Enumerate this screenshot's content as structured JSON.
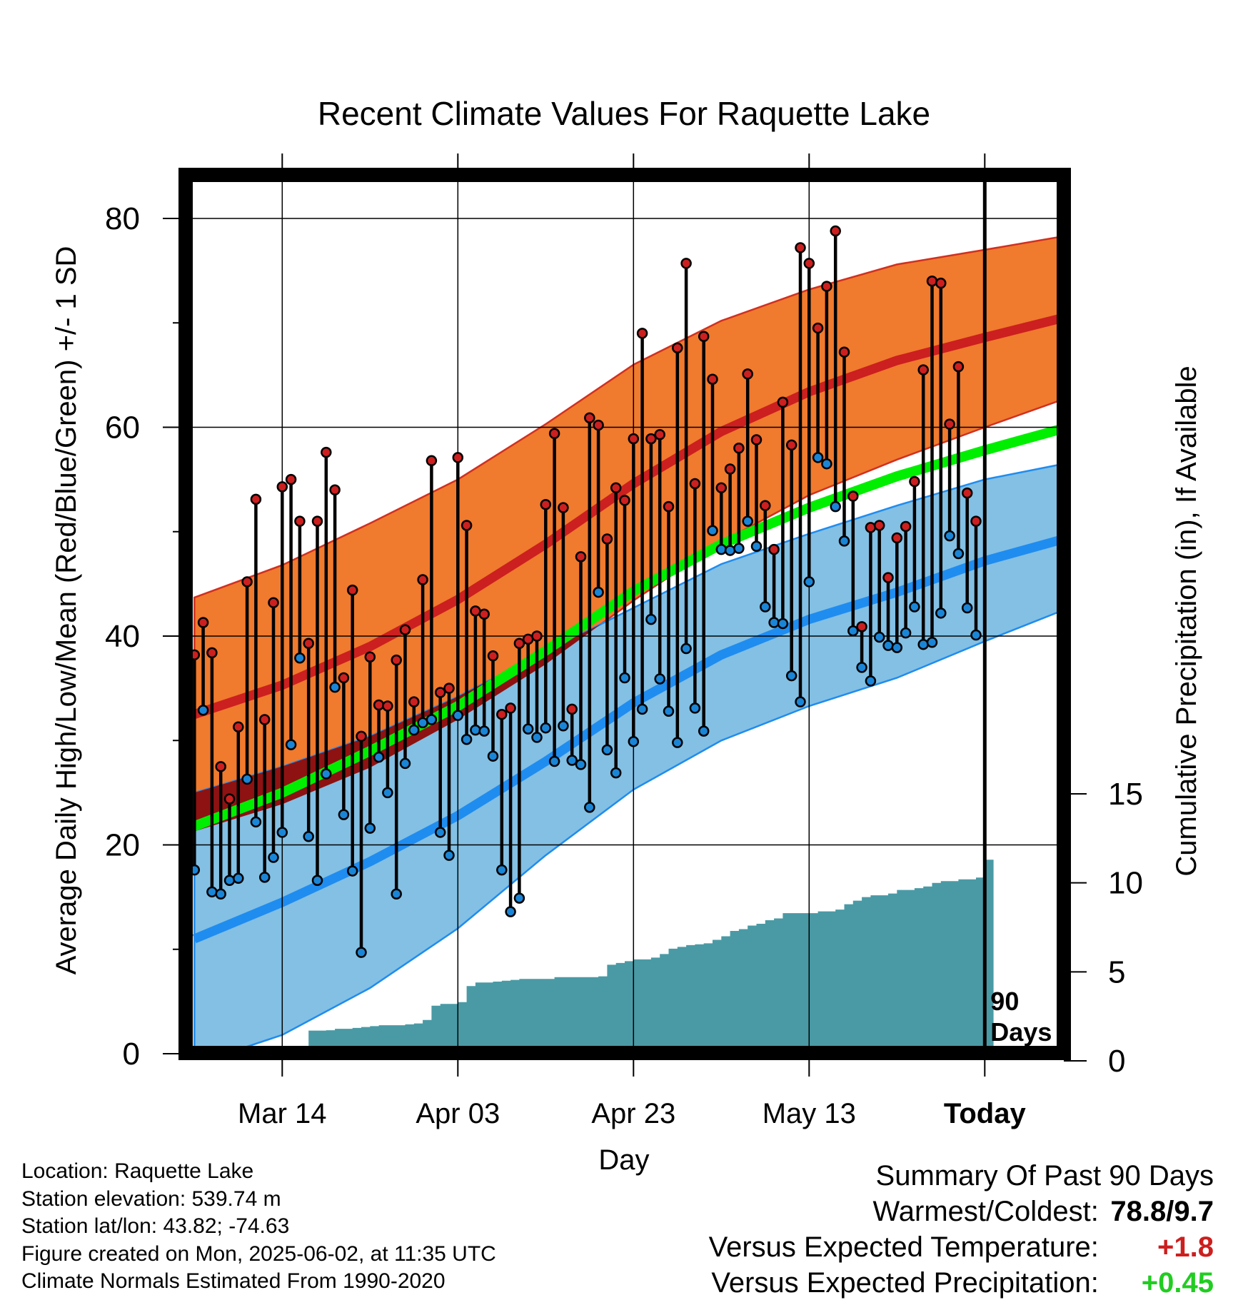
{
  "chart_data": {
    "type": "line",
    "title": "Recent Climate Values For Raquette Lake",
    "xlabel": "Day",
    "ylabel": "Average Daily High/Low/Mean (Red/Blue/Green) +/- 1 SD",
    "y2label": "Cumulative Precipitation (in), If Available",
    "ylim": [
      0,
      80
    ],
    "y2lim": [
      0,
      15
    ],
    "ytick_labels": [
      "0",
      "20",
      "40",
      "60",
      "80"
    ],
    "y2tick_labels": [
      "0",
      "5",
      "10",
      "15"
    ],
    "xlim": [
      -1,
      99
    ],
    "x_ticks": [
      {
        "day": 10,
        "label": "Mar 14"
      },
      {
        "day": 30,
        "label": "Apr 03"
      },
      {
        "day": 50,
        "label": "Apr 23"
      },
      {
        "day": 70,
        "label": "May 13"
      },
      {
        "day": 90,
        "label": "Today"
      }
    ],
    "today_marker": {
      "day": 90,
      "label_line1": "90",
      "label_line2": "Days"
    },
    "grid": true,
    "normals": {
      "days": [
        0,
        10,
        20,
        30,
        40,
        50,
        60,
        70,
        80,
        90,
        99
      ],
      "high_mean": [
        32.5,
        35.3,
        39.0,
        43.5,
        48.8,
        54.6,
        59.6,
        63.4,
        66.4,
        68.6,
        70.5
      ],
      "high_sd_upper": [
        43.7,
        46.8,
        50.8,
        55.0,
        60.3,
        66.0,
        70.2,
        73.2,
        75.6,
        77.0,
        78.3
      ],
      "high_sd_lower": [
        21.3,
        23.9,
        27.4,
        32.0,
        37.3,
        43.4,
        49.0,
        53.5,
        56.9,
        60.0,
        62.7
      ],
      "low_mean": [
        11.0,
        14.5,
        18.4,
        22.8,
        28.0,
        33.6,
        38.2,
        41.6,
        44.2,
        47.2,
        49.3
      ],
      "low_sd_upper": [
        25.0,
        27.5,
        30.4,
        34.2,
        38.5,
        42.7,
        46.9,
        49.8,
        52.5,
        55.0,
        56.5
      ],
      "low_sd_lower": [
        -1.0,
        1.8,
        6.3,
        12.0,
        19.0,
        25.3,
        30.0,
        33.3,
        36.0,
        39.5,
        42.5
      ],
      "mean_mean": [
        21.8,
        25.0,
        29.0,
        33.3,
        38.6,
        44.3,
        48.8,
        52.3,
        55.3,
        57.8,
        59.9
      ]
    },
    "series": [
      {
        "name": "High",
        "color": "#cc1f1f",
        "values": [
          38.2,
          41.3,
          38.4,
          27.5,
          24.4,
          31.3,
          45.2,
          53.1,
          32.0,
          43.2,
          54.3,
          55.0,
          51.0,
          39.3,
          51.0,
          57.6,
          54.0,
          36.0,
          44.4,
          30.4,
          38.0,
          33.4,
          33.3,
          37.7,
          40.6,
          33.7,
          45.4,
          56.8,
          34.6,
          35.0,
          57.1,
          50.6,
          42.4,
          42.1,
          38.1,
          32.5,
          33.1,
          39.3,
          39.7,
          40.0,
          52.6,
          59.4,
          52.3,
          33.0,
          47.6,
          60.9,
          60.2,
          49.3,
          54.2,
          53.0,
          58.9,
          69.0,
          58.9,
          59.3,
          52.4,
          67.6,
          75.7,
          54.6,
          68.7,
          64.6,
          54.2,
          56.0,
          58.0,
          65.1,
          58.8,
          52.5,
          48.3,
          62.4,
          58.3,
          77.2,
          75.7,
          69.5,
          73.5,
          78.8,
          67.2,
          53.4,
          40.9,
          50.4,
          50.6,
          45.6,
          49.4,
          50.5,
          54.8,
          65.5,
          74.0,
          73.8,
          60.3,
          65.8,
          53.7,
          51.0
        ]
      },
      {
        "name": "Low",
        "color": "#1a85d6",
        "values": [
          17.6,
          32.9,
          15.5,
          15.3,
          16.6,
          16.8,
          26.3,
          22.2,
          16.9,
          18.8,
          21.2,
          29.6,
          37.9,
          20.8,
          16.6,
          26.8,
          35.1,
          22.9,
          17.5,
          9.7,
          21.6,
          28.4,
          25.0,
          15.3,
          27.8,
          31.0,
          31.7,
          32.0,
          21.2,
          19.0,
          32.4,
          30.1,
          31.0,
          30.9,
          28.5,
          17.6,
          13.6,
          14.9,
          31.1,
          30.3,
          31.2,
          28.0,
          31.4,
          28.1,
          27.7,
          23.6,
          44.2,
          29.1,
          26.9,
          36.0,
          29.9,
          33.0,
          41.6,
          35.9,
          32.8,
          29.8,
          38.8,
          33.1,
          30.9,
          50.1,
          48.3,
          48.2,
          48.4,
          51.0,
          48.6,
          42.8,
          41.3,
          41.2,
          36.2,
          33.7,
          45.2,
          57.1,
          56.5,
          52.4,
          49.1,
          40.5,
          37.0,
          35.7,
          39.9,
          39.1,
          38.9,
          40.3,
          42.8,
          39.2,
          39.4,
          42.2,
          49.6,
          47.9,
          42.7,
          40.1
        ]
      },
      {
        "name": "Precipitation",
        "color": "#4a9aa5",
        "values": [
          0.0,
          0.1,
          0.15,
          0.22,
          0.3,
          0.35,
          0.35,
          0.35,
          0.35,
          0.35,
          0.4,
          0.45,
          0.45,
          1.7,
          1.7,
          1.72,
          1.8,
          1.8,
          1.85,
          1.9,
          1.95,
          2.0,
          2.0,
          2.0,
          2.05,
          2.1,
          2.3,
          3.1,
          3.2,
          3.2,
          3.3,
          4.2,
          4.4,
          4.4,
          4.45,
          4.5,
          4.55,
          4.6,
          4.6,
          4.6,
          4.6,
          4.7,
          4.7,
          4.7,
          4.7,
          4.7,
          4.75,
          5.4,
          5.5,
          5.6,
          5.7,
          5.7,
          5.8,
          6.0,
          6.3,
          6.4,
          6.5,
          6.55,
          6.6,
          6.8,
          7.0,
          7.3,
          7.4,
          7.6,
          7.7,
          7.9,
          8.0,
          8.3,
          8.3,
          8.3,
          8.3,
          8.4,
          8.4,
          8.5,
          8.8,
          9.0,
          9.2,
          9.3,
          9.3,
          9.4,
          9.6,
          9.6,
          9.7,
          9.8,
          10.0,
          10.1,
          10.1,
          10.2,
          10.2,
          10.3,
          11.3
        ]
      }
    ],
    "colors": {
      "high_band": "#f07a2e",
      "high_mean": "#cc1f1f",
      "overlap_band": "#8e1212",
      "low_band": "#83c0e4",
      "low_mean": "#1f8cf0",
      "mean_line": "#00ee00",
      "precip_fill": "#4a9aa5"
    }
  },
  "footer": {
    "location": "Location: Raquette Lake",
    "elevation": "Station elevation: 539.74 m",
    "latlon": "Station lat/lon: 43.82; -74.63",
    "created": "Figure created on Mon, 2025-06-02, at 11:35 UTC",
    "normals": "Climate Normals Estimated From 1990-2020"
  },
  "summary": {
    "title": "Summary Of Past 90 Days",
    "warm_cold_label": "Warmest/Coldest:",
    "warm_cold_value": "78.8/9.7",
    "temp_label": "Versus Expected Temperature:",
    "temp_value": "+1.8",
    "temp_color": "#cc1f1f",
    "precip_label": "Versus Expected Precipitation:",
    "precip_value": "+0.45",
    "precip_color": "#22cc22"
  }
}
